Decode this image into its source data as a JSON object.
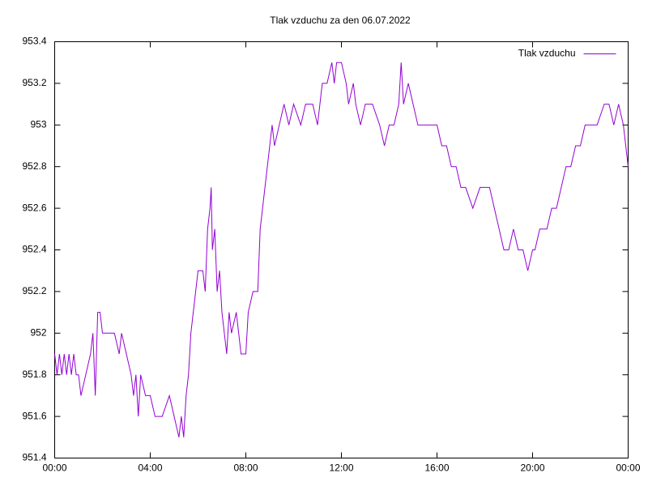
{
  "chart_data": {
    "type": "line",
    "title": "Tlak vzduchu za den 06.07.2022",
    "x": [
      0,
      0.1,
      0.2,
      0.3,
      0.4,
      0.5,
      0.6,
      0.7,
      0.8,
      0.9,
      1.0,
      1.1,
      1.3,
      1.5,
      1.6,
      1.7,
      1.8,
      1.9,
      2.0,
      2.2,
      2.5,
      2.7,
      2.8,
      3.0,
      3.2,
      3.3,
      3.4,
      3.5,
      3.6,
      3.8,
      4.0,
      4.2,
      4.5,
      4.8,
      5.0,
      5.2,
      5.3,
      5.4,
      5.5,
      5.6,
      5.7,
      5.8,
      6.0,
      6.2,
      6.3,
      6.4,
      6.5,
      6.55,
      6.6,
      6.7,
      6.8,
      6.9,
      7.0,
      7.2,
      7.3,
      7.4,
      7.6,
      7.8,
      8.0,
      8.1,
      8.3,
      8.5,
      8.6,
      8.8,
      9.0,
      9.1,
      9.2,
      9.4,
      9.6,
      9.8,
      10.0,
      10.3,
      10.5,
      10.8,
      11.0,
      11.2,
      11.4,
      11.6,
      11.7,
      11.8,
      12.0,
      12.2,
      12.3,
      12.5,
      12.6,
      12.8,
      13.0,
      13.3,
      13.6,
      13.8,
      14.0,
      14.2,
      14.4,
      14.5,
      14.6,
      14.8,
      15.0,
      15.2,
      15.5,
      15.8,
      16.0,
      16.2,
      16.4,
      16.6,
      16.8,
      17.0,
      17.2,
      17.5,
      17.8,
      18.0,
      18.2,
      18.4,
      18.6,
      18.8,
      19.0,
      19.2,
      19.4,
      19.6,
      19.8,
      20.0,
      20.1,
      20.3,
      20.6,
      20.8,
      21.0,
      21.2,
      21.4,
      21.6,
      21.8,
      22.0,
      22.2,
      22.4,
      22.7,
      23.0,
      23.2,
      23.4,
      23.6,
      23.8,
      24.0
    ],
    "series": [
      {
        "name": "Tlak vzduchu",
        "color": "#9400d3",
        "values": [
          951.9,
          951.8,
          951.9,
          951.8,
          951.9,
          951.8,
          951.9,
          951.8,
          951.9,
          951.8,
          951.8,
          951.7,
          951.8,
          951.9,
          952.0,
          951.7,
          952.1,
          952.1,
          952.0,
          952.0,
          952.0,
          951.9,
          952.0,
          951.9,
          951.8,
          951.7,
          951.8,
          951.6,
          951.8,
          951.7,
          951.7,
          951.6,
          951.6,
          951.7,
          951.6,
          951.5,
          951.6,
          951.5,
          951.7,
          951.8,
          952.0,
          952.1,
          952.3,
          952.3,
          952.2,
          952.5,
          952.6,
          952.7,
          952.4,
          952.5,
          952.2,
          952.3,
          952.1,
          951.9,
          952.1,
          952.0,
          952.1,
          951.9,
          951.9,
          952.1,
          952.2,
          952.2,
          952.5,
          952.7,
          952.9,
          953.0,
          952.9,
          953.0,
          953.1,
          953.0,
          953.1,
          953.0,
          953.1,
          953.1,
          953.0,
          953.2,
          953.2,
          953.3,
          953.2,
          953.3,
          953.3,
          953.2,
          953.1,
          953.2,
          953.1,
          953.0,
          953.1,
          953.1,
          953.0,
          952.9,
          953.0,
          953.0,
          953.1,
          953.3,
          953.1,
          953.2,
          953.1,
          953.0,
          953.0,
          953.0,
          953.0,
          952.9,
          952.9,
          952.8,
          952.8,
          952.7,
          952.7,
          952.6,
          952.7,
          952.7,
          952.7,
          952.6,
          952.5,
          952.4,
          952.4,
          952.5,
          952.4,
          952.4,
          952.3,
          952.4,
          952.4,
          952.5,
          952.5,
          952.6,
          952.6,
          952.7,
          952.8,
          952.8,
          952.9,
          952.9,
          953.0,
          953.0,
          953.0,
          953.1,
          953.1,
          953.0,
          953.1,
          953.0,
          952.8
        ]
      }
    ],
    "xlim": [
      0,
      24
    ],
    "xticks": [
      {
        "value": 0,
        "label": "00:00"
      },
      {
        "value": 4,
        "label": "04:00"
      },
      {
        "value": 8,
        "label": "08:00"
      },
      {
        "value": 12,
        "label": "12:00"
      },
      {
        "value": 16,
        "label": "16:00"
      },
      {
        "value": 20,
        "label": "20:00"
      },
      {
        "value": 24,
        "label": "00:00"
      }
    ],
    "ylim": [
      951.4,
      953.4
    ],
    "yticks": [
      951.4,
      951.6,
      951.8,
      952,
      952.2,
      952.4,
      952.6,
      952.8,
      953,
      953.2,
      953.4
    ],
    "legend": "top right",
    "grid": false
  }
}
